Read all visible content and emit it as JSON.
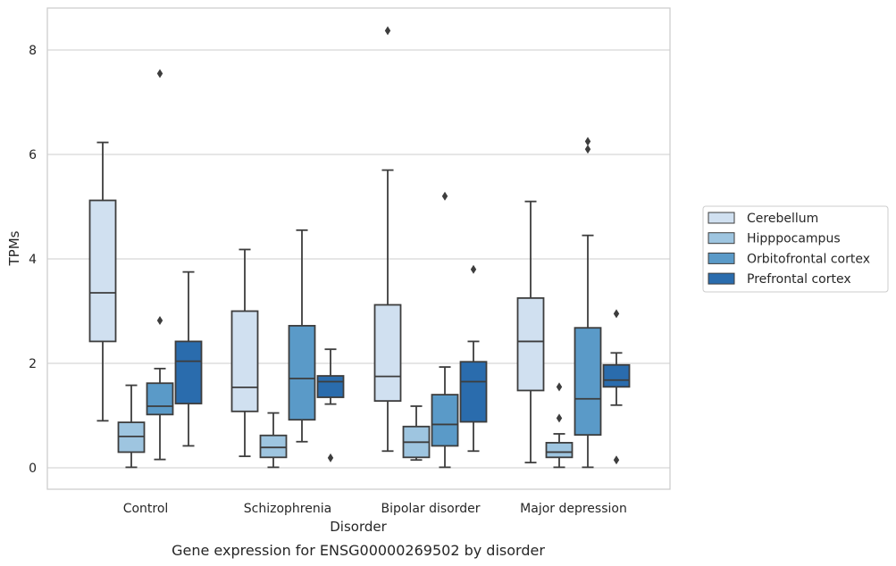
{
  "chart_data": {
    "type": "box",
    "xlabel": "Disorder",
    "ylabel": "TPMs",
    "caption": "Gene expression for ENSG00000269502 by disorder",
    "ylim": [
      -0.4,
      8.8
    ],
    "yticks": [
      0,
      2,
      4,
      6,
      8
    ],
    "grid": "horizontal",
    "legend_position": "right",
    "categories": [
      "Control",
      "Schizophrenia",
      "Bipolar disorder",
      "Major depression"
    ],
    "series": [
      {
        "name": "Cerebellum",
        "color": "#d0e0f0",
        "boxes": [
          {
            "whisker_low": 0.9,
            "q1": 2.42,
            "median": 3.35,
            "q3": 5.12,
            "whisker_high": 6.23,
            "outliers": []
          },
          {
            "whisker_low": 0.22,
            "q1": 1.08,
            "median": 1.54,
            "q3": 3.0,
            "whisker_high": 4.18,
            "outliers": []
          },
          {
            "whisker_low": 0.32,
            "q1": 1.28,
            "median": 1.75,
            "q3": 3.12,
            "whisker_high": 5.7,
            "outliers": [
              8.37
            ]
          },
          {
            "whisker_low": 0.1,
            "q1": 1.48,
            "median": 2.42,
            "q3": 3.25,
            "whisker_high": 5.1,
            "outliers": []
          }
        ]
      },
      {
        "name": "Hipppocampus",
        "color": "#9ec5e0",
        "boxes": [
          {
            "whisker_low": 0.01,
            "q1": 0.3,
            "median": 0.6,
            "q3": 0.87,
            "whisker_high": 1.58,
            "outliers": []
          },
          {
            "whisker_low": 0.01,
            "q1": 0.2,
            "median": 0.39,
            "q3": 0.62,
            "whisker_high": 1.05,
            "outliers": []
          },
          {
            "whisker_low": 0.15,
            "q1": 0.2,
            "median": 0.49,
            "q3": 0.79,
            "whisker_high": 1.18,
            "outliers": []
          },
          {
            "whisker_low": 0.01,
            "q1": 0.2,
            "median": 0.3,
            "q3": 0.48,
            "whisker_high": 0.65,
            "outliers": [
              1.55,
              0.95
            ]
          }
        ]
      },
      {
        "name": "Orbitofrontal cortex",
        "color": "#5a9ac8",
        "boxes": [
          {
            "whisker_low": 0.16,
            "q1": 1.02,
            "median": 1.18,
            "q3": 1.62,
            "whisker_high": 1.9,
            "outliers": [
              7.55,
              2.82
            ]
          },
          {
            "whisker_low": 0.5,
            "q1": 0.92,
            "median": 1.71,
            "q3": 2.72,
            "whisker_high": 4.55,
            "outliers": []
          },
          {
            "whisker_low": 0.01,
            "q1": 0.42,
            "median": 0.83,
            "q3": 1.4,
            "whisker_high": 1.93,
            "outliers": [
              5.2
            ]
          },
          {
            "whisker_low": 0.01,
            "q1": 0.63,
            "median": 1.32,
            "q3": 2.68,
            "whisker_high": 4.45,
            "outliers": [
              6.25,
              6.1
            ]
          }
        ]
      },
      {
        "name": "Prefrontal cortex",
        "color": "#2a6cad",
        "boxes": [
          {
            "whisker_low": 0.42,
            "q1": 1.23,
            "median": 2.04,
            "q3": 2.42,
            "whisker_high": 3.75,
            "outliers": []
          },
          {
            "whisker_low": 1.22,
            "q1": 1.35,
            "median": 1.65,
            "q3": 1.76,
            "whisker_high": 2.27,
            "outliers": [
              0.19
            ]
          },
          {
            "whisker_low": 0.32,
            "q1": 0.88,
            "median": 1.65,
            "q3": 2.03,
            "whisker_high": 2.42,
            "outliers": [
              3.8
            ]
          },
          {
            "whisker_low": 1.2,
            "q1": 1.55,
            "median": 1.68,
            "q3": 1.97,
            "whisker_high": 2.2,
            "outliers": [
              2.95,
              0.15
            ]
          }
        ]
      }
    ]
  }
}
